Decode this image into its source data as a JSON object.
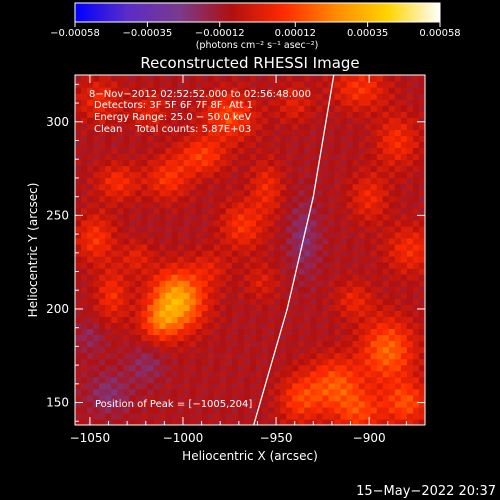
{
  "chart_data": {
    "type": "heatmap",
    "title": "Reconstructed RHESSI Image",
    "xlabel": "Heliocentric X (arcsec)",
    "ylabel": "Heliocentric Y (arcsec)",
    "xlim": [
      -1058,
      -870
    ],
    "ylim": [
      138,
      325
    ],
    "xticks": [
      -1050,
      -1000,
      -950,
      -900
    ],
    "xtick_labels": [
      "−1050",
      "−1000",
      "−950",
      "−900"
    ],
    "yticks": [
      150,
      200,
      250,
      300
    ],
    "ytick_labels": [
      "150",
      "200",
      "250",
      "300"
    ],
    "colorbar": {
      "range": [
        -0.00058,
        0.00058
      ],
      "ticks": [
        -0.00058,
        -0.00035,
        -0.00012,
        0.00012,
        0.00035,
        0.00058
      ],
      "tick_labels": [
        "−0.00058",
        "−0.00035",
        "−0.00012",
        "0.00012",
        "0.00035",
        "0.00058"
      ],
      "colors": [
        "#0000ff",
        "#5a2cc8",
        "#7a3a8c",
        "#b01010",
        "#ff2a00",
        "#ff8a00",
        "#ffd400",
        "#ffffff"
      ]
    },
    "units_label": "(photons cm⁻² s⁻¹ asec⁻²)",
    "info_lines": [
      "8−Nov−2012 02:52:52.000 to 02:56:48.000",
      "Detectors: 3F 5F 6F 7F 8F, Att 1",
      "Energy Range: 25.0 − 50.0 keV",
      "Clean    Total counts: 5.87E+03"
    ],
    "peak_label": "Position of Peak = [−1005,204]",
    "peak": {
      "x": -1005,
      "y": 204
    },
    "limb": [
      {
        "x": -962,
        "y": 138
      },
      {
        "x": -944,
        "y": 200
      },
      {
        "x": -930,
        "y": 260
      },
      {
        "x": -919,
        "y": 325
      }
    ],
    "blobs": [
      {
        "x": -1003,
        "y": 205,
        "sx": 10,
        "sy": 11,
        "a": 1.3
      },
      {
        "x": -1013,
        "y": 193,
        "sx": 7,
        "sy": 7,
        "a": 0.6
      },
      {
        "x": -1038,
        "y": 208,
        "sx": 6,
        "sy": 10,
        "a": 0.5
      },
      {
        "x": -1047,
        "y": 238,
        "sx": 7,
        "sy": 9,
        "a": 0.55
      },
      {
        "x": -1025,
        "y": 228,
        "sx": 6,
        "sy": 6,
        "a": 0.35
      },
      {
        "x": -1035,
        "y": 268,
        "sx": 8,
        "sy": 7,
        "a": 0.5
      },
      {
        "x": -1008,
        "y": 270,
        "sx": 8,
        "sy": 8,
        "a": 0.55
      },
      {
        "x": -990,
        "y": 282,
        "sx": 9,
        "sy": 7,
        "a": 0.6
      },
      {
        "x": -975,
        "y": 303,
        "sx": 10,
        "sy": 9,
        "a": 0.65
      },
      {
        "x": -1045,
        "y": 312,
        "sx": 8,
        "sy": 8,
        "a": 0.45
      },
      {
        "x": -1018,
        "y": 306,
        "sx": 7,
        "sy": 7,
        "a": 0.35
      },
      {
        "x": -968,
        "y": 245,
        "sx": 8,
        "sy": 9,
        "a": 0.55
      },
      {
        "x": -955,
        "y": 265,
        "sx": 6,
        "sy": 10,
        "a": 0.45
      },
      {
        "x": -985,
        "y": 222,
        "sx": 7,
        "sy": 7,
        "a": 0.3
      },
      {
        "x": -958,
        "y": 215,
        "sx": 6,
        "sy": 7,
        "a": 0.3
      },
      {
        "x": -940,
        "y": 310,
        "sx": 7,
        "sy": 7,
        "a": 0.35
      },
      {
        "x": -905,
        "y": 318,
        "sx": 10,
        "sy": 8,
        "a": 0.55
      },
      {
        "x": -885,
        "y": 290,
        "sx": 8,
        "sy": 10,
        "a": 0.5
      },
      {
        "x": -900,
        "y": 260,
        "sx": 7,
        "sy": 9,
        "a": 0.45
      },
      {
        "x": -878,
        "y": 232,
        "sx": 9,
        "sy": 9,
        "a": 0.5
      },
      {
        "x": -908,
        "y": 205,
        "sx": 7,
        "sy": 7,
        "a": 0.4
      },
      {
        "x": -890,
        "y": 178,
        "sx": 10,
        "sy": 12,
        "a": 0.85
      },
      {
        "x": -918,
        "y": 160,
        "sx": 10,
        "sy": 10,
        "a": 0.75
      },
      {
        "x": -937,
        "y": 152,
        "sx": 8,
        "sy": 9,
        "a": 0.6
      },
      {
        "x": -905,
        "y": 145,
        "sx": 9,
        "sy": 8,
        "a": 0.6
      },
      {
        "x": -880,
        "y": 150,
        "sx": 8,
        "sy": 8,
        "a": 0.7
      },
      {
        "x": -1040,
        "y": 155,
        "sx": 8,
        "sy": 8,
        "a": -0.35
      },
      {
        "x": -1020,
        "y": 170,
        "sx": 7,
        "sy": 7,
        "a": -0.3
      },
      {
        "x": -935,
        "y": 238,
        "sx": 6,
        "sy": 14,
        "a": -0.35
      },
      {
        "x": -1050,
        "y": 185,
        "sx": 6,
        "sy": 6,
        "a": -0.25
      }
    ]
  },
  "footer": {
    "timestamp": "15−May−2022 20:37"
  }
}
